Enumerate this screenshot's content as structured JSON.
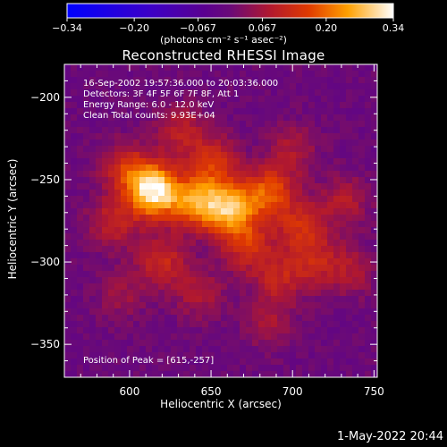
{
  "chart_data": {
    "type": "heatmap",
    "title": "Reconstructed RHESSI Image",
    "xlabel": "Heliocentric X (arcsec)",
    "ylabel": "Heliocentric Y (arcsec)",
    "xlim": [
      560,
      752
    ],
    "ylim": [
      -370,
      -180
    ],
    "x_ticks": [
      600,
      650,
      700,
      750
    ],
    "y_ticks": [
      -200,
      -250,
      -300,
      -350
    ],
    "x_tick_labels": [
      "600",
      "650",
      "700",
      "750"
    ],
    "y_tick_labels": [
      "−200",
      "−250",
      "−300",
      "−350"
    ],
    "colorbar": {
      "min": -0.34,
      "max": 0.34,
      "ticks": [
        -0.34,
        -0.2,
        -0.067,
        0.067,
        0.2,
        0.34
      ],
      "tick_labels": [
        "−0.34",
        "−0.20",
        "−0.067",
        "0.067",
        "0.20",
        "0.34"
      ],
      "units": "(photons cm⁻² s⁻¹ asec⁻²)"
    },
    "sources": [
      {
        "x": 615,
        "y": -257,
        "peak": 0.34
      },
      {
        "x": 641,
        "y": -264,
        "peak": 0.22
      },
      {
        "x": 662,
        "y": -268,
        "peak": 0.25
      },
      {
        "x": 686,
        "y": -258,
        "peak": 0.18
      },
      {
        "x": 652,
        "y": -240,
        "peak": 0.14
      },
      {
        "x": 632,
        "y": -221,
        "peak": 0.1
      },
      {
        "x": 598,
        "y": -243,
        "peak": 0.13
      },
      {
        "x": 590,
        "y": -276,
        "peak": 0.11
      },
      {
        "x": 620,
        "y": -300,
        "peak": 0.12
      },
      {
        "x": 672,
        "y": -290,
        "peak": 0.13
      },
      {
        "x": 705,
        "y": -279,
        "peak": 0.12
      },
      {
        "x": 732,
        "y": -263,
        "peak": 0.09
      },
      {
        "x": 691,
        "y": -310,
        "peak": 0.1
      },
      {
        "x": 713,
        "y": -300,
        "peak": 0.1
      },
      {
        "x": 643,
        "y": -320,
        "peak": 0.08
      },
      {
        "x": 700,
        "y": -232,
        "peak": 0.08
      },
      {
        "x": 736,
        "y": -305,
        "peak": 0.08
      },
      {
        "x": 686,
        "y": -337,
        "peak": 0.07
      },
      {
        "x": 595,
        "y": -320,
        "peak": 0.06
      }
    ],
    "info_lines": [
      "16-Sep-2002 19:57:36.000 to 20:03:36.000",
      "Detectors: 3F 4F 5F 6F 7F 8F, Att 1",
      "Energy Range: 6.0 - 12.0 keV",
      "Clean     Total counts: 9.93E+04"
    ],
    "peak_label": "Position of Peak = [615,-257]"
  },
  "footer": {
    "timestamp": "1-May-2022 20:44"
  }
}
